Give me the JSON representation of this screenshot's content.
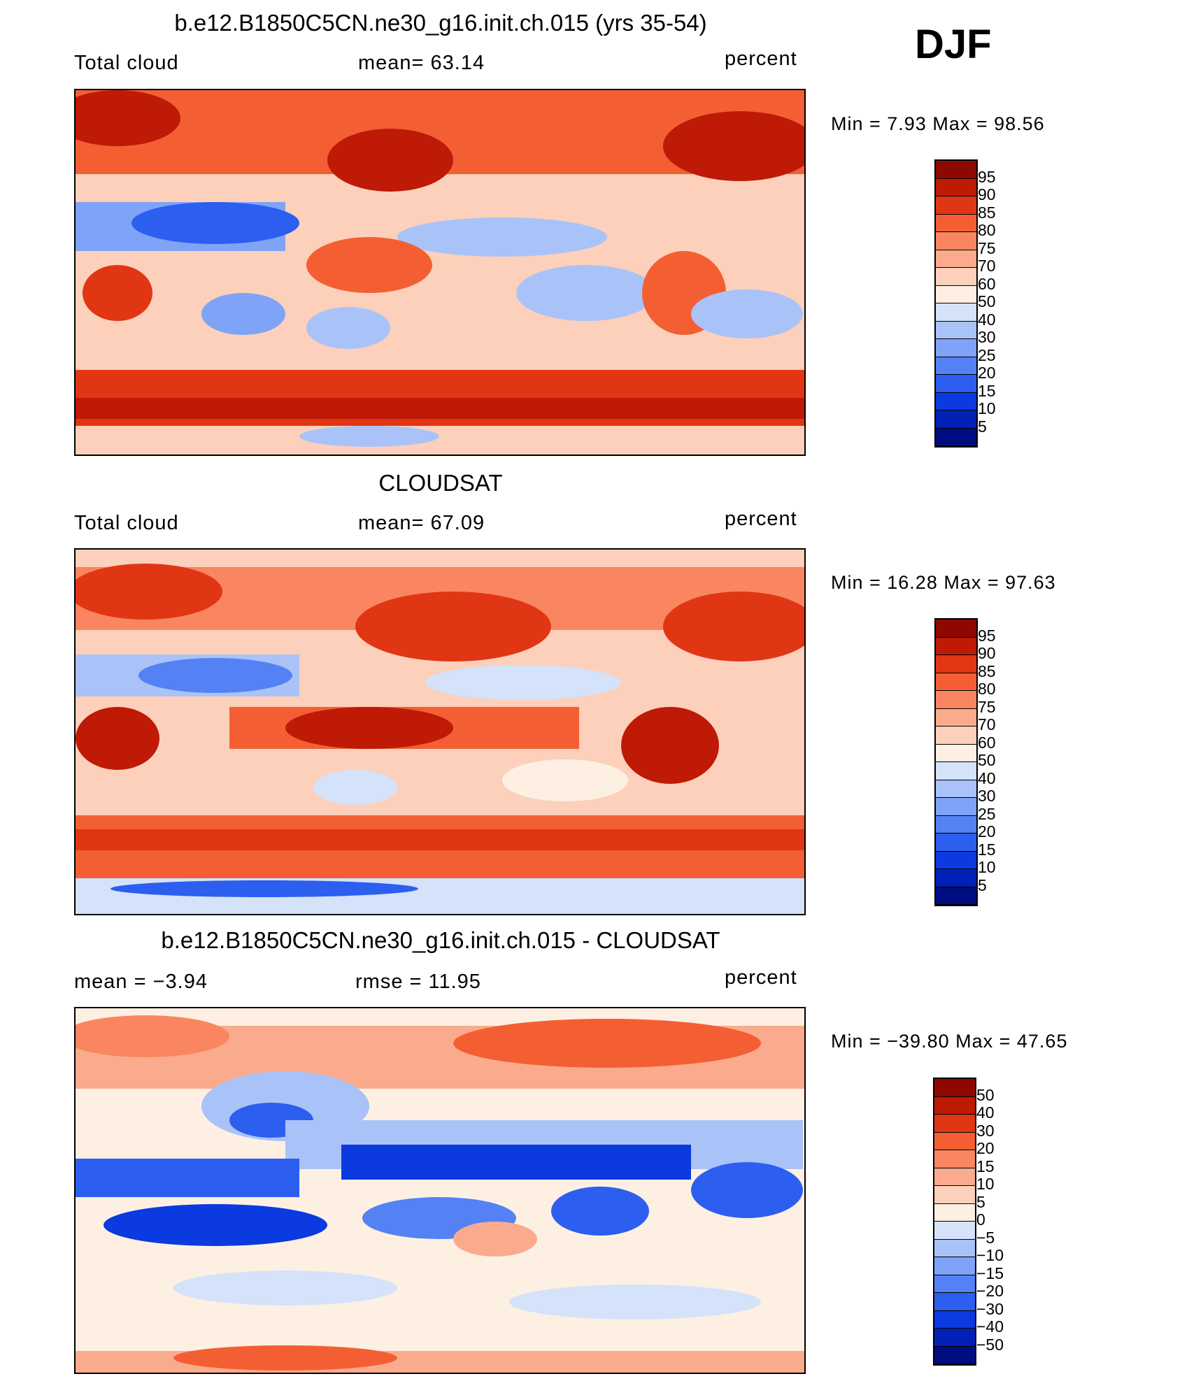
{
  "season": "DJF",
  "colors": {
    "abs_scale": [
      "#000d80",
      "#0020b8",
      "#0a3ae0",
      "#2c5ef0",
      "#5482f5",
      "#7fa3f7",
      "#a9c3f8",
      "#d4e2fa",
      "#fdf0e3",
      "#fcd0ba",
      "#fbab8d",
      "#f98660",
      "#f35f33",
      "#e13614",
      "#be1a06",
      "#8f0800"
    ],
    "diff_scale": [
      "#000d80",
      "#0020b8",
      "#0a3ae0",
      "#2c5ef0",
      "#5482f5",
      "#7fa3f7",
      "#a9c3f8",
      "#d4e2fa",
      "#fdf0e3",
      "#fcd0ba",
      "#fbab8d",
      "#f98660",
      "#f35f33",
      "#e13614",
      "#be1a06",
      "#8f0800"
    ]
  },
  "chart_data": [
    {
      "type": "heatmap",
      "title": "b.e12.B1850C5CN.ne30_g16.init.ch.015 (yrs 35-54)",
      "left_label": "Total cloud",
      "center_label": "mean=   63.14",
      "right_label": "percent",
      "min_max": "Min =     7.93  Max =    98.56",
      "levels": [
        "95",
        "90",
        "85",
        "80",
        "75",
        "70",
        "60",
        "50",
        "40",
        "30",
        "25",
        "20",
        "15",
        "10",
        "5"
      ]
    },
    {
      "type": "heatmap",
      "title": "CLOUDSAT",
      "left_label": "Total cloud",
      "center_label": "mean=   67.09",
      "right_label": "percent",
      "min_max": "Min =   16.28  Max =    97.63",
      "levels": [
        "95",
        "90",
        "85",
        "80",
        "75",
        "70",
        "60",
        "50",
        "40",
        "30",
        "25",
        "20",
        "15",
        "10",
        "5"
      ]
    },
    {
      "type": "heatmap",
      "title": "b.e12.B1850C5CN.ne30_g16.init.ch.015 - CLOUDSAT",
      "left_label": "mean  =   −3.94",
      "center_label": "rmse  =    11.95",
      "right_label": "percent",
      "min_max": "Min = −39.80  Max =    47.65",
      "levels": [
        "50",
        "40",
        "30",
        "20",
        "15",
        "10",
        "5",
        "0",
        "−5",
        "−10",
        "−15",
        "−20",
        "−30",
        "−40",
        "−50"
      ]
    }
  ]
}
